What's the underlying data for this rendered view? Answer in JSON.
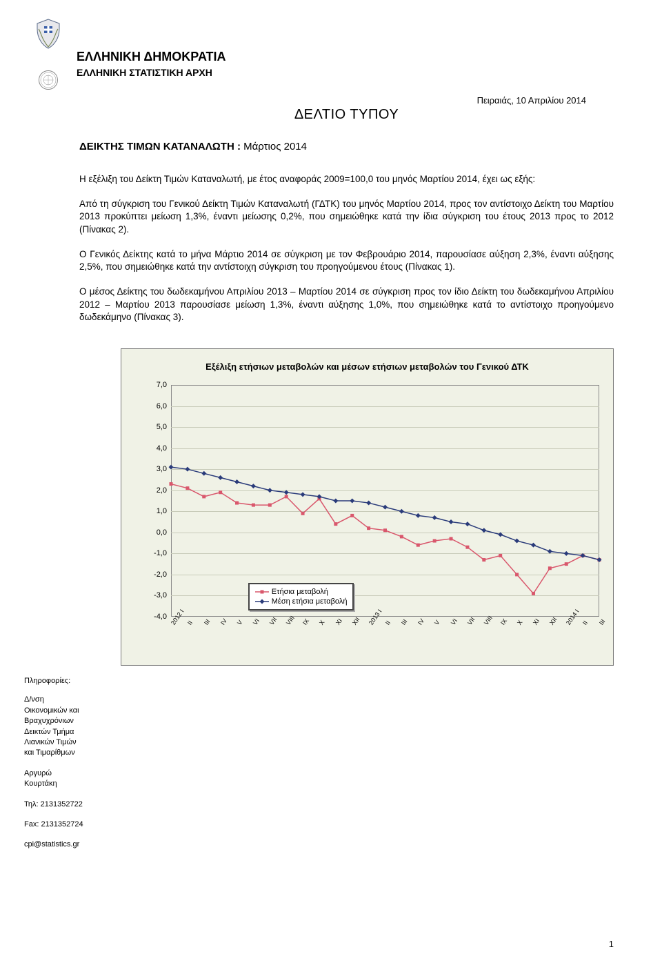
{
  "header": {
    "org_title": "ΕΛΛΗΝΙΚΗ ΔΗΜΟΚΡΑΤΙΑ",
    "org_sub": "ΕΛΛΗΝΙΚΗ ΣΤΑΤΙΣΤΙΚΗ ΑΡΧΗ",
    "date_line": "Πειραιάς, 10 Απριλίου 2014",
    "press_title": "ΔΕΛΤΙΟ ΤΥΠΟΥ",
    "index_label": "ΔΕΙΚΤΗΣ ΤΙΜΩΝ ΚΑΤΑΝΑΛΩΤΗ :",
    "index_period": " Μάρτιος 2014"
  },
  "paragraphs": {
    "p1": "Η εξέλιξη του Δείκτη Τιμών Καταναλωτή, με έτος αναφοράς 2009=100,0 του μηνός Μαρτίου 2014, έχει ως εξής:",
    "p2": "Από τη σύγκριση του Γενικού Δείκτη Τιμών Καταναλωτή (ΓΔΤΚ) του μηνός Μαρτίου 2014, προς τον αντίστοιχο Δείκτη του Μαρτίου 2013 προκύπτει μείωση 1,3%, έναντι μείωσης 0,2%, που σημειώθηκε κατά την ίδια σύγκριση του έτους 2013 προς το 2012 (Πίνακας 2).",
    "p3": "Ο Γενικός Δείκτης κατά το μήνα Μάρτιο 2014 σε σύγκριση με τον Φεβρουάριο 2014, παρουσίασε αύξηση 2,3%, έναντι αύξησης 2,5%, που σημειώθηκε κατά την αντίστοιχη σύγκριση του προηγούμενου έτους (Πίνακας 1).",
    "p4": "Ο μέσος Δείκτης του δωδεκαμήνου Απριλίου 2013 – Μαρτίου 2014 σε σύγκριση προς τον ίδιο Δείκτη του δωδεκαμήνου Απριλίου 2012 – Μαρτίου 2013 παρουσίασε μείωση 1,3%, έναντι αύξησης 1,0%, που σημειώθηκε κατά το αντίστοιχο προηγούμενο δωδεκάμηνο (Πίνακας 3)."
  },
  "chart": {
    "title": "Εξέλιξη ετήσιων μεταβολών και μέσων ετήσιων μεταβολών του Γενικού ΔΤΚ",
    "ylim": [
      -4.0,
      7.0
    ],
    "ytick_step": 1.0,
    "yticks": [
      "7,0",
      "6,0",
      "5,0",
      "4,0",
      "3,0",
      "2,0",
      "1,0",
      "0,0",
      "-1,0",
      "-2,0",
      "-3,0",
      "-4,0"
    ],
    "ytick_vals": [
      7,
      6,
      5,
      4,
      3,
      2,
      1,
      0,
      -1,
      -2,
      -3,
      -4
    ],
    "x_labels": [
      "2012 I",
      "II",
      "III",
      "IV",
      "V",
      "VI",
      "VII",
      "VIII",
      "IX",
      "X",
      "XI",
      "XII",
      "2013 I",
      "II",
      "III",
      "IV",
      "V",
      "VI",
      "VII",
      "VIII",
      "IX",
      "X",
      "XI",
      "XII",
      "2014 I",
      "II",
      "III"
    ],
    "series": [
      {
        "name": "Ετήσια μεταβολή",
        "color": "#d9576c",
        "marker": "square",
        "values": [
          2.3,
          2.1,
          1.7,
          1.9,
          1.4,
          1.3,
          1.3,
          1.7,
          0.9,
          1.6,
          0.4,
          0.8,
          0.2,
          0.1,
          -0.2,
          -0.6,
          -0.4,
          -0.3,
          -0.7,
          -1.3,
          -1.1,
          -2.0,
          -2.9,
          -1.7,
          -1.5,
          -1.1,
          -1.3
        ]
      },
      {
        "name": "Μέση ετήσια μεταβολή",
        "color": "#2a3b7a",
        "marker": "diamond",
        "values": [
          3.1,
          3.0,
          2.8,
          2.6,
          2.4,
          2.2,
          2.0,
          1.9,
          1.8,
          1.7,
          1.5,
          1.5,
          1.4,
          1.2,
          1.0,
          0.8,
          0.7,
          0.5,
          0.4,
          0.1,
          -0.1,
          -0.4,
          -0.6,
          -0.9,
          -1.0,
          -1.1,
          -1.3
        ]
      }
    ],
    "legend": {
      "row1": "Ετήσια μεταβολή",
      "row2": "Μέση ετήσια μεταβολή"
    },
    "bg_color": "#f0f2e6",
    "grid_color": "#c8cbb9",
    "axis_color": "#888888"
  },
  "sidebar": {
    "info_head": "Πληροφορίες:",
    "dept": "Δ/νση\nΟικονομικών και\nΒραχυχρόνιων\nΔεικτών Τμήμα\nΛιανικών Τιμών\nκαι Τιμαρίθμων",
    "name": "Αργυρώ\nΚουρτάκη",
    "tel": "Τηλ: 2131352722",
    "fax": "Fax: 2131352724",
    "email": "cpi@statistics.gr"
  },
  "page_num": "1"
}
